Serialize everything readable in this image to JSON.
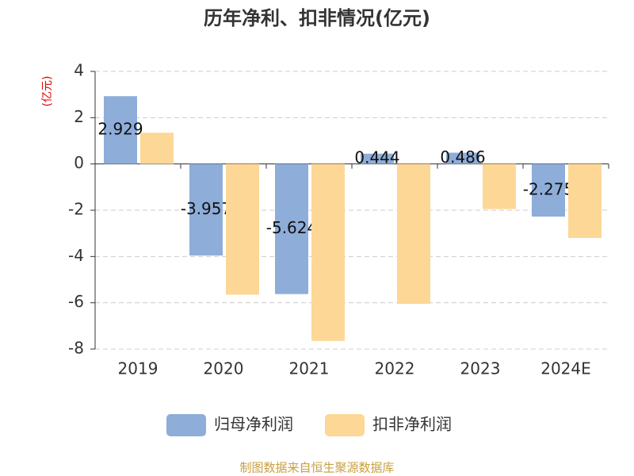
{
  "chart_data": {
    "type": "bar",
    "title": "历年净利、扣非情况(亿元)",
    "y_label": "(亿元)",
    "categories": [
      "2019",
      "2020",
      "2021",
      "2022",
      "2023",
      "2024E"
    ],
    "series": [
      {
        "name": "归母净利润",
        "color": "#8eadd9",
        "values": [
          2.929,
          -3.957,
          -5.624,
          0.444,
          0.486,
          -2.275
        ]
      },
      {
        "name": "扣非净利润",
        "color": "#fdd796",
        "values": [
          1.35,
          -5.65,
          -7.65,
          -6.05,
          -1.95,
          -3.2
        ]
      }
    ],
    "ylim": [
      -8,
      4
    ],
    "yticks": [
      -8,
      -6,
      -4,
      -2,
      0,
      2,
      4
    ],
    "grid": true,
    "source": "制图数据来自恒生聚源数据库"
  }
}
